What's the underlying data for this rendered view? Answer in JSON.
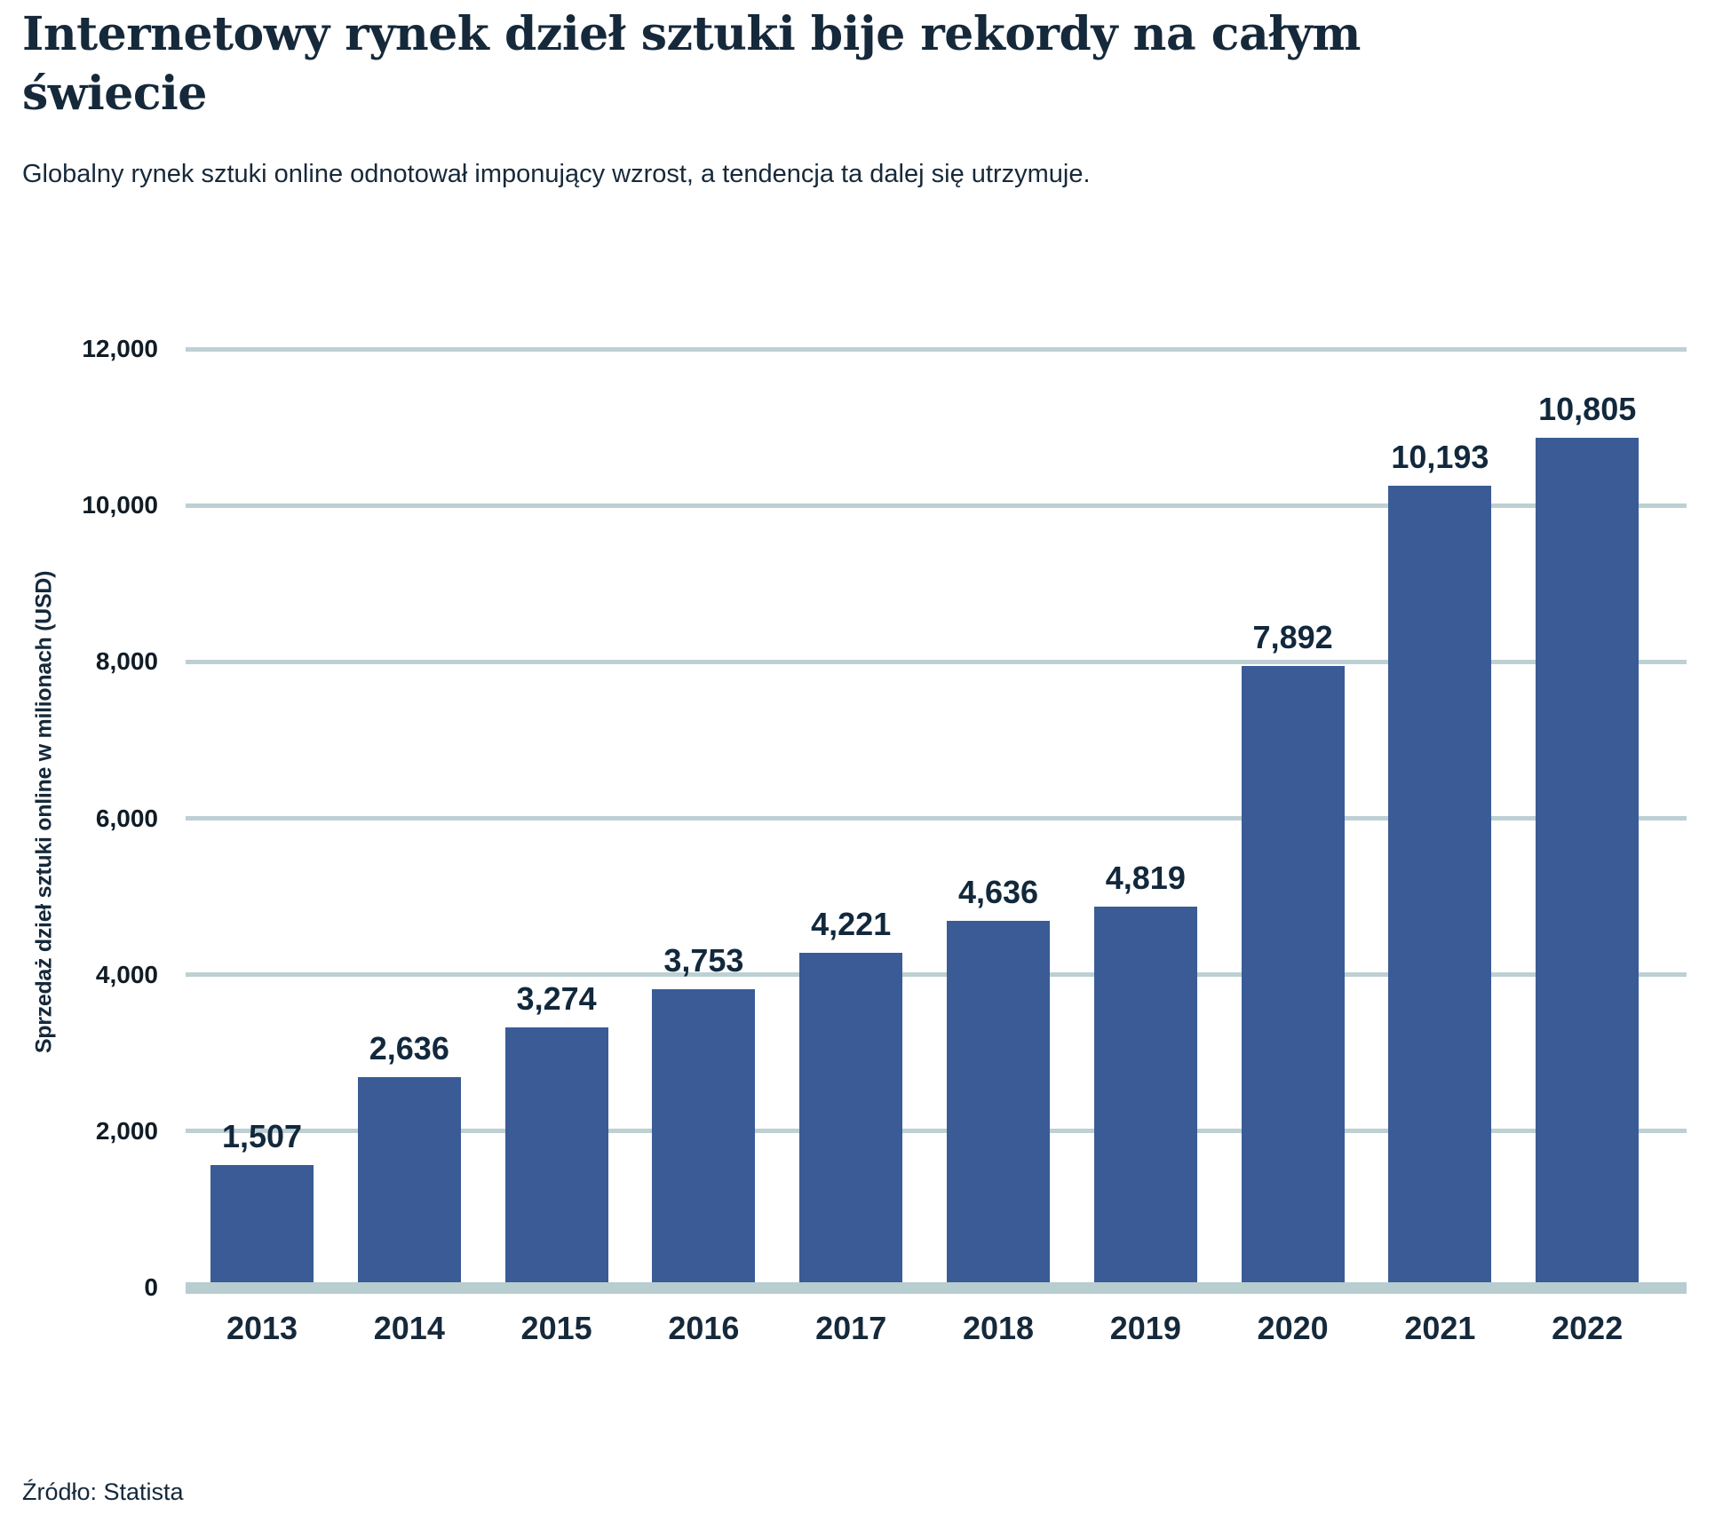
{
  "page": {
    "title": "Internetowy rynek dzieł sztuki bije rekordy na całym świecie",
    "subtitle": "Globalny rynek sztuki online odnotował imponujący wzrost, a tendencja ta dalej się utrzymuje.",
    "source": "Źródło: Statista"
  },
  "chart_data": {
    "type": "bar",
    "title": "Internetowy rynek dzieł sztuki bije rekordy na całym świecie",
    "subtitle": "Globalny rynek sztuki online odnotował imponujący wzrost, a tendencja ta dalej się utrzymuje.",
    "categories": [
      "2013",
      "2014",
      "2015",
      "2016",
      "2017",
      "2018",
      "2019",
      "2020",
      "2021",
      "2022"
    ],
    "values": [
      1507,
      2636,
      3274,
      3753,
      4221,
      4636,
      4819,
      7892,
      10193,
      10805
    ],
    "value_labels": [
      "1,507",
      "2,636",
      "3,274",
      "3,753",
      "4,221",
      "4,636",
      "4,819",
      "7,892",
      "10,193",
      "10,805"
    ],
    "xlabel": "",
    "ylabel": "Sprzedaż dzieł sztuki online w milionach (USD)",
    "ylim": [
      0,
      12000
    ],
    "ytick_step": 2000,
    "ytick_labels": [
      "0",
      "2,000",
      "4,000",
      "6,000",
      "8,000",
      "10,000",
      "12,000"
    ],
    "grid": true,
    "legend": false,
    "source": "Źródło: Statista",
    "colors": {
      "bar": "#3a5b96",
      "gridline": "#bdd0d3",
      "baseline": "#b7cdd0",
      "axis_text": "#101c26",
      "label_text": "#12283c",
      "title_text": "#15293b"
    }
  }
}
